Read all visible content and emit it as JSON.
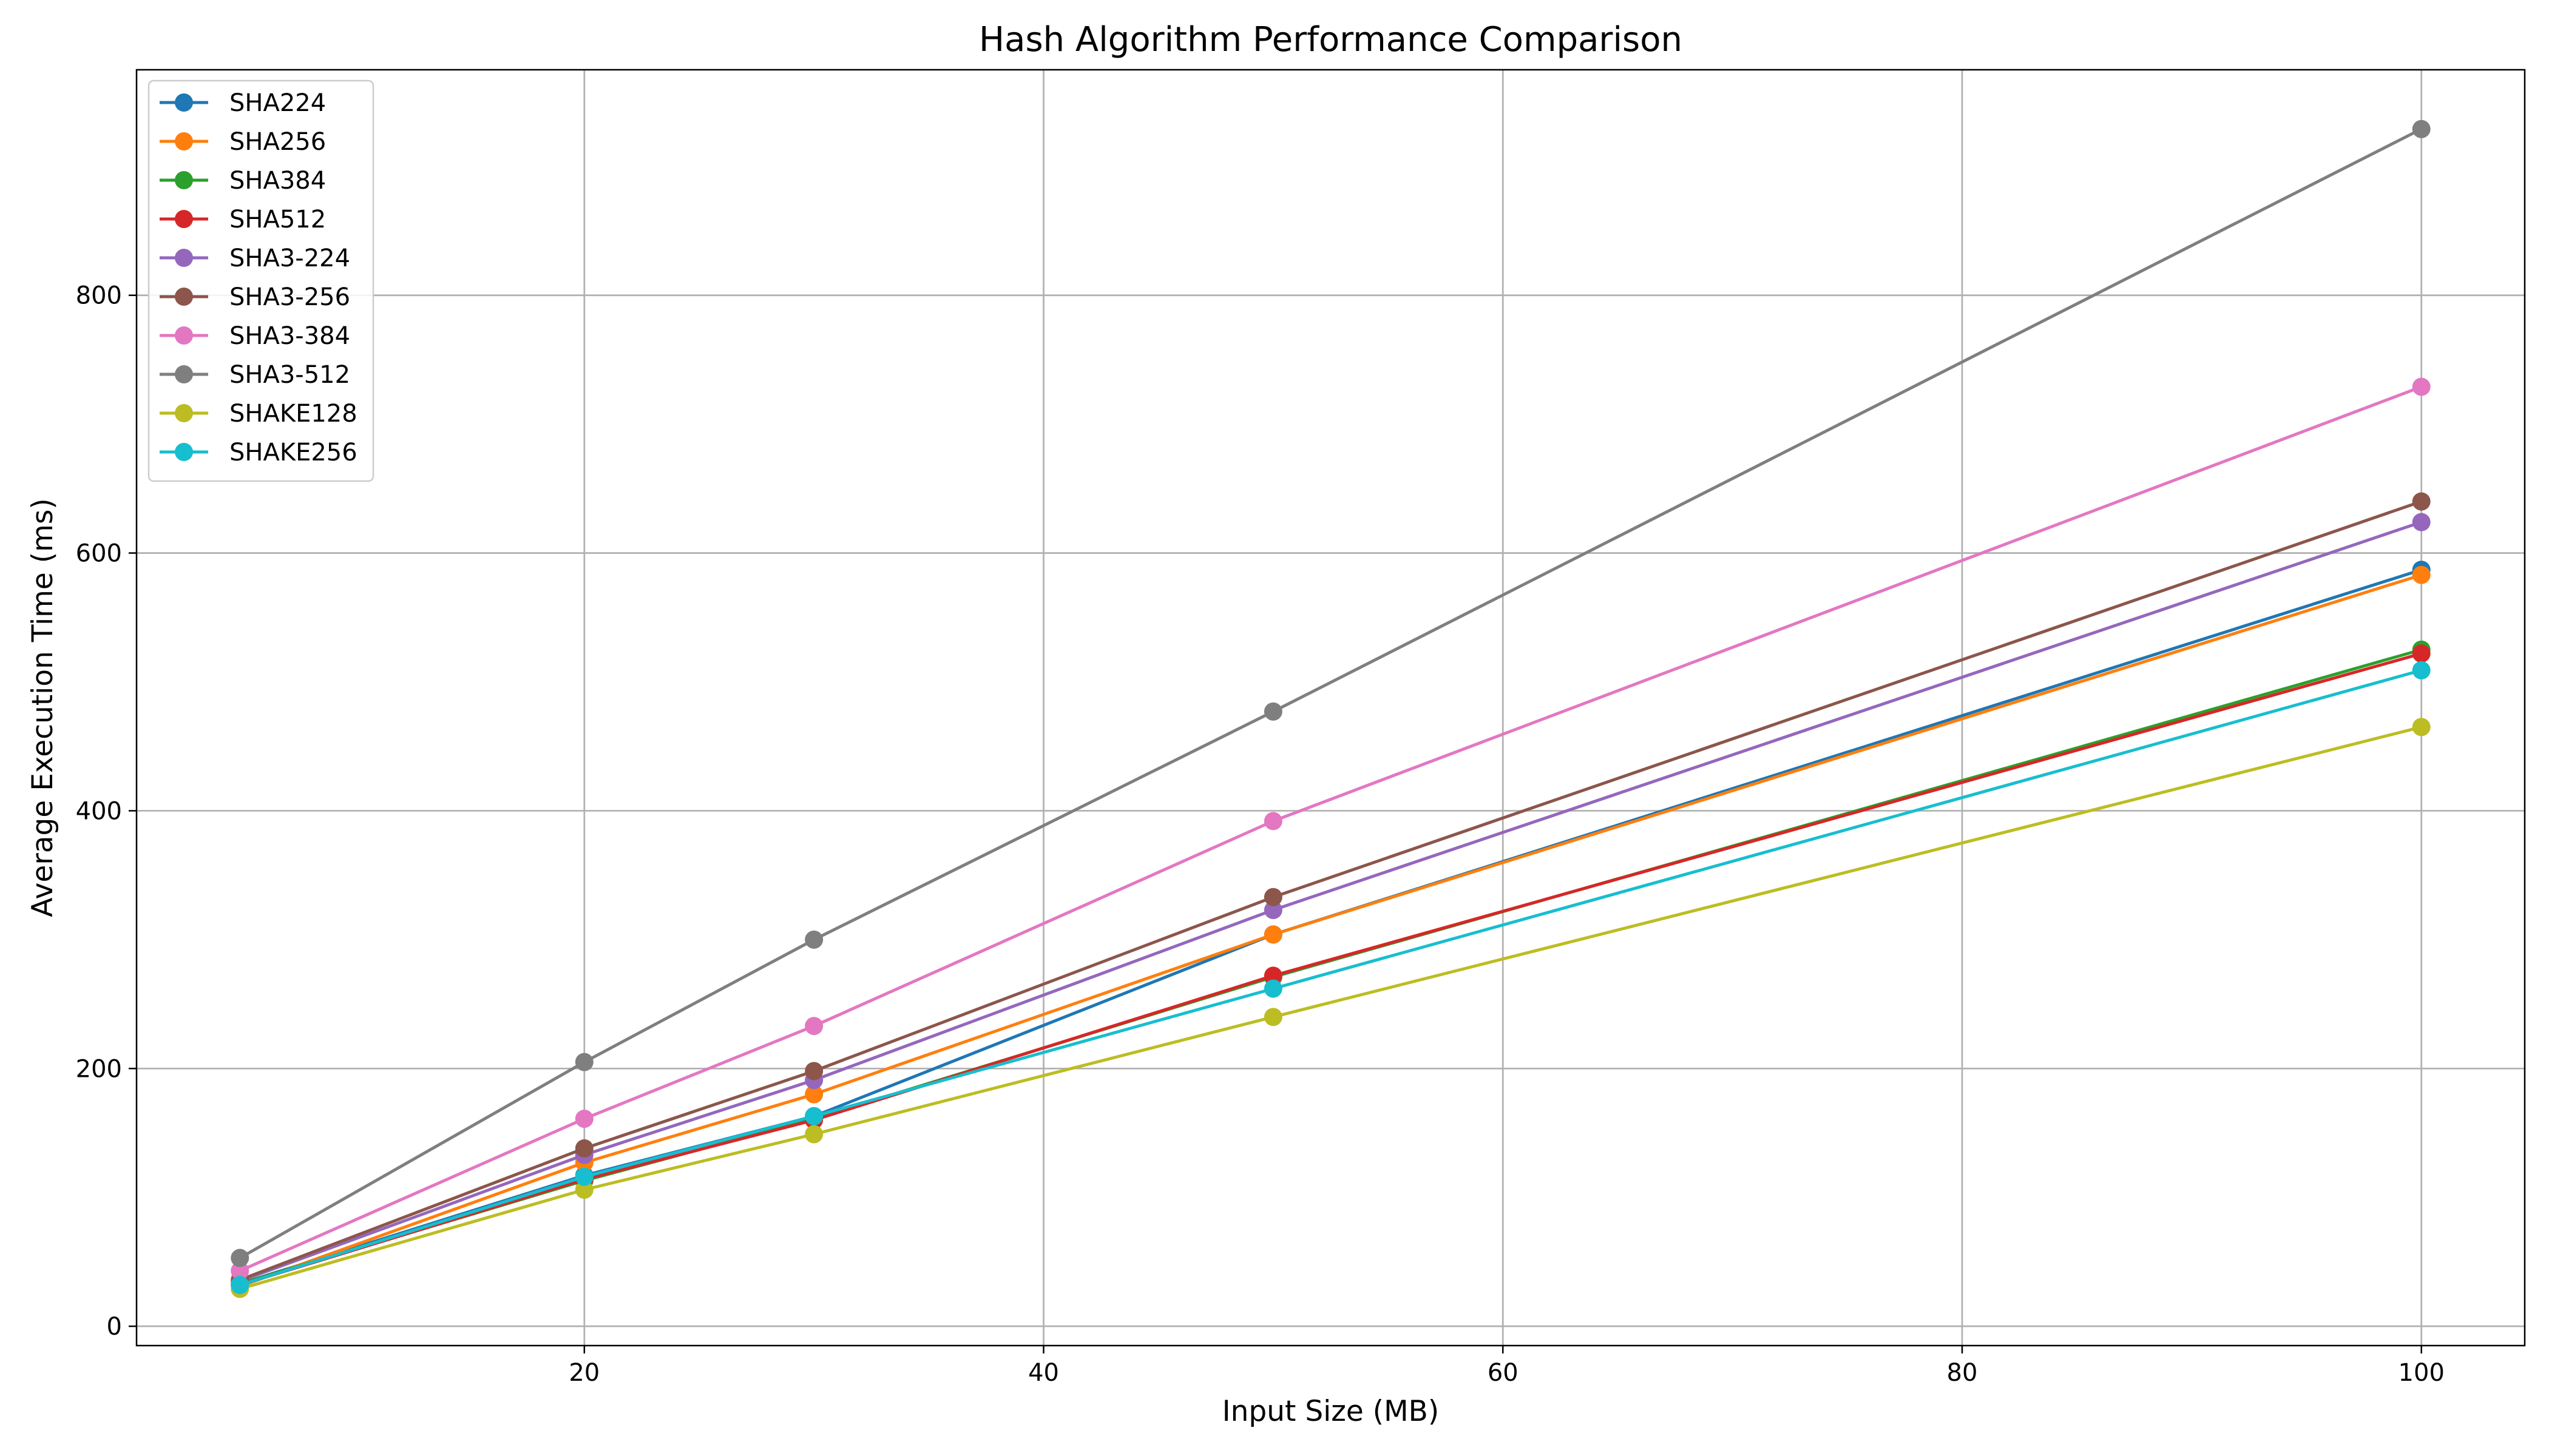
{
  "chart_data": {
    "type": "line",
    "title": "Hash Algorithm Performance Comparison",
    "xlabel": "Input Size (MB)",
    "ylabel": "Average Execution Time (ms)",
    "xlim": [
      0.5,
      104.5
    ],
    "ylim": [
      -15,
      975
    ],
    "xticks": [
      20,
      40,
      60,
      80,
      100
    ],
    "yticks": [
      0,
      200,
      400,
      600,
      800
    ],
    "grid": true,
    "legend_position": "top-left",
    "x": [
      5,
      20,
      30,
      50,
      100
    ],
    "series": [
      {
        "name": "SHA224",
        "color": "#1f77b4",
        "values": [
          33,
          117,
          163,
          304,
          587
        ]
      },
      {
        "name": "SHA256",
        "color": "#ff7f0e",
        "values": [
          31,
          127,
          180,
          304,
          583
        ]
      },
      {
        "name": "SHA384",
        "color": "#2ca02c",
        "values": [
          33,
          113,
          161,
          271,
          525
        ]
      },
      {
        "name": "SHA512",
        "color": "#d62728",
        "values": [
          32,
          114,
          160,
          272,
          522
        ]
      },
      {
        "name": "SHA3-224",
        "color": "#9467bd",
        "values": [
          35,
          133,
          191,
          323,
          624
        ]
      },
      {
        "name": "SHA3-256",
        "color": "#8c564b",
        "values": [
          36,
          138,
          198,
          333,
          640
        ]
      },
      {
        "name": "SHA3-384",
        "color": "#e377c2",
        "values": [
          43,
          161,
          233,
          392,
          729
        ]
      },
      {
        "name": "SHA3-512",
        "color": "#7f7f7f",
        "values": [
          53,
          205,
          300,
          477,
          929
        ]
      },
      {
        "name": "SHAKE128",
        "color": "#bcbd22",
        "values": [
          29,
          106,
          149,
          240,
          465
        ]
      },
      {
        "name": "SHAKE256",
        "color": "#17becf",
        "values": [
          32,
          116,
          163,
          262,
          509
        ]
      }
    ]
  }
}
